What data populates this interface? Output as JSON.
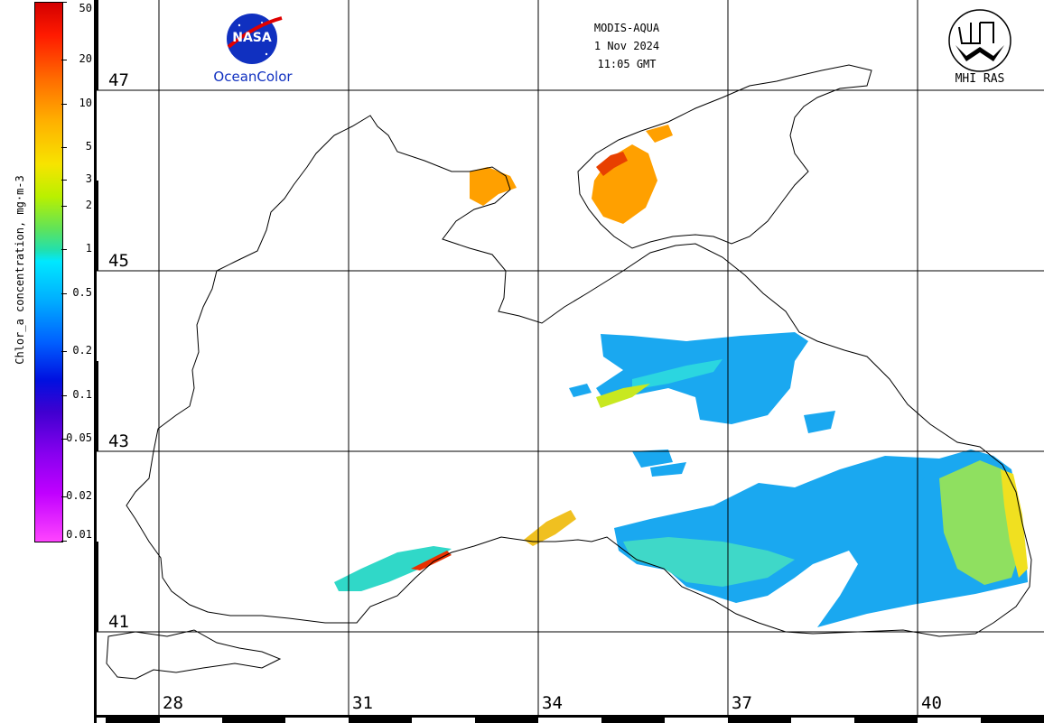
{
  "header": {
    "sensor": "MODIS-AQUA",
    "date": "1 Nov 2024",
    "time": "11:05 GMT"
  },
  "logos": {
    "left_text": "NASA",
    "left_caption": "OceanColor",
    "right_caption": "MHI RAS"
  },
  "colorbar": {
    "title": "Chlor_a concentration, mg·m-3",
    "scale": "log",
    "range": [
      0.01,
      50
    ],
    "tick_labels": [
      "50",
      "20",
      "10",
      "5",
      "3",
      "2",
      "1",
      "0.5",
      "0.2",
      "0.1",
      "0.05",
      "0.02",
      "0.01"
    ],
    "tick_values": [
      50,
      20,
      10,
      5,
      3,
      2,
      1,
      0.5,
      0.2,
      0.1,
      0.05,
      0.02,
      0.01
    ],
    "colors": [
      "#d30000",
      "#ff6a00",
      "#f7e400",
      "#5fe35a",
      "#00e8ff",
      "#0060ff",
      "#4000d0",
      "#ff44ff"
    ]
  },
  "map": {
    "region": "Black Sea",
    "lat_labels": [
      "47",
      "45",
      "43",
      "41"
    ],
    "lat_values": [
      47,
      45,
      43,
      41
    ],
    "lon_labels": [
      "28",
      "31",
      "34",
      "37",
      "40"
    ],
    "lon_values": [
      28,
      31,
      34,
      37,
      40
    ],
    "grid": true,
    "land_color": "#ffffff",
    "coast_color": "#000000"
  }
}
